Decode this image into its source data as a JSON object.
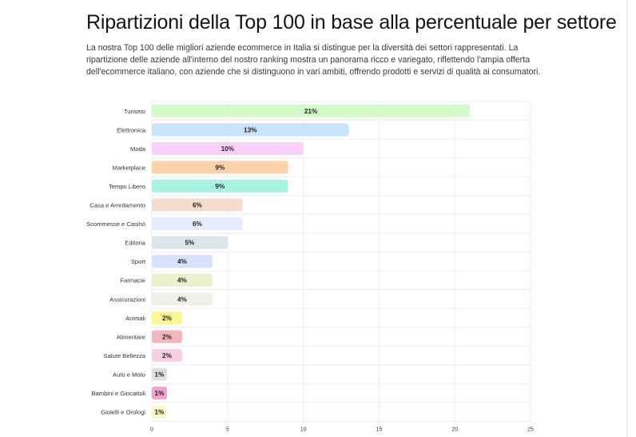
{
  "page": {
    "title": "Ripartizioni della Top 100 in base alla percentuale per settore",
    "intro": "La nostra Top 100 delle migliori aziende ecommerce in Italia si distingue per la diversità dei settori rappresentati. La ripartizione delle aziende all'interno del nostro ranking mostra un panorama ricco e variegato, riflettendo l'ampia offerta dell'ecommerce italiano, con aziende che si distinguono in vari ambiti, offrendo prodotti e servizi di qualità ai consumatori."
  },
  "chart_data": {
    "type": "bar",
    "orientation": "horizontal",
    "categories": [
      "Turismo",
      "Elettronica",
      "Moda",
      "Marketplace",
      "Tempo Libero",
      "Casa e Arredamento",
      "Scommesse e Casinò",
      "Editoria",
      "Sport",
      "Farmacie",
      "Assicurazioni",
      "Animali",
      "Alimentare",
      "Salute Bellezza",
      "Auto e Moto",
      "Bambini e Giocattoli",
      "Gioielli e Orologi"
    ],
    "values": [
      21,
      13,
      10,
      9,
      9,
      6,
      6,
      5,
      4,
      4,
      4,
      2,
      2,
      2,
      1,
      1,
      1
    ],
    "value_labels": [
      "21%",
      "13%",
      "10%",
      "9%",
      "9%",
      "6%",
      "6%",
      "5%",
      "4%",
      "4%",
      "4%",
      "2%",
      "2%",
      "2%",
      "1%",
      "1%",
      "1%"
    ],
    "colors": [
      "#d2fbc9",
      "#c8e3fb",
      "#f6d0f9",
      "#fcd2aa",
      "#a8f4e2",
      "#f5dccd",
      "#e6ebfd",
      "#dce5ea",
      "#d6e2fe",
      "#ebf1cd",
      "#f0f0eb",
      "#fbf68f",
      "#f5b5bd",
      "#fbcde1",
      "#dfdfdf",
      "#f6a2cf",
      "#fcf7c8"
    ],
    "xlim": [
      0,
      25
    ],
    "xticks": [
      "0",
      "5",
      "10",
      "15",
      "20",
      "25"
    ],
    "grid": true
  }
}
